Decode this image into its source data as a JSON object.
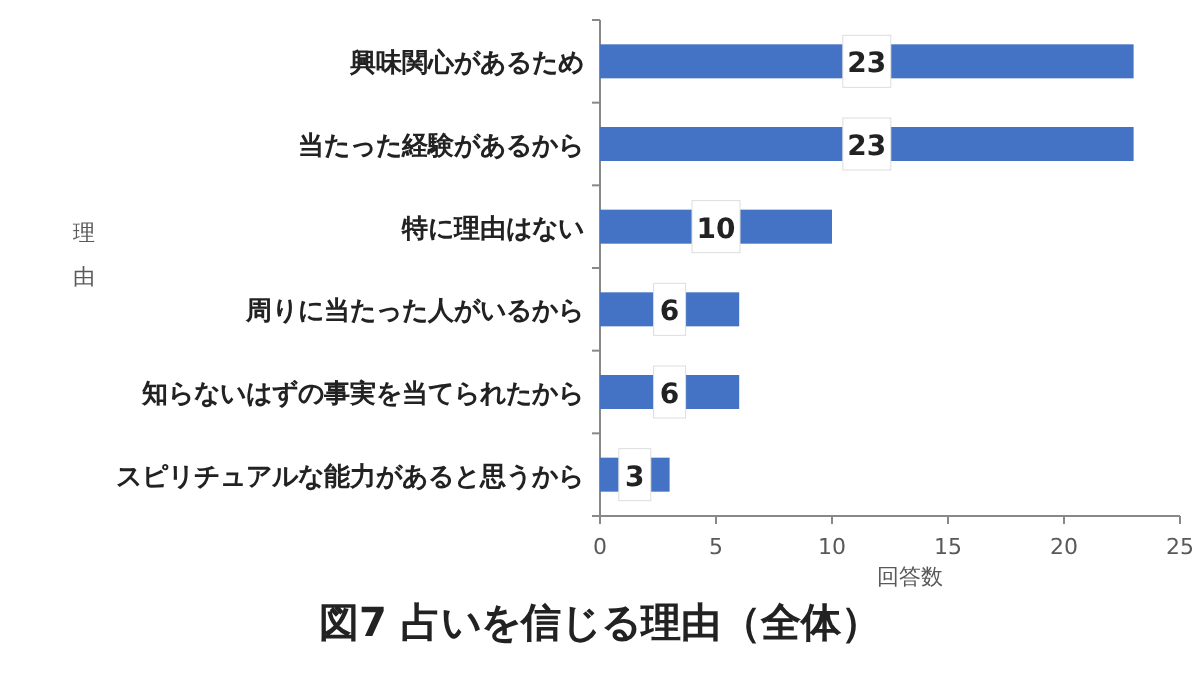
{
  "chart_data": {
    "type": "bar",
    "orientation": "horizontal",
    "title": "図7 占いを信じる理由（全体）",
    "xlabel": "回答数",
    "ylabel": "理由",
    "categories": [
      "興味関心があるため",
      "当たった経験があるから",
      "特に理由はない",
      "周りに当たった人がいるから",
      "知らないはずの事実を当てられたから",
      "スピリチュアルな能力があると思うから"
    ],
    "values": [
      23,
      23,
      10,
      6,
      6,
      3
    ],
    "color": "#4472c4",
    "xlim": [
      0,
      25
    ],
    "xticks": [
      0,
      5,
      10,
      15,
      20,
      25
    ],
    "data_labels": true
  }
}
